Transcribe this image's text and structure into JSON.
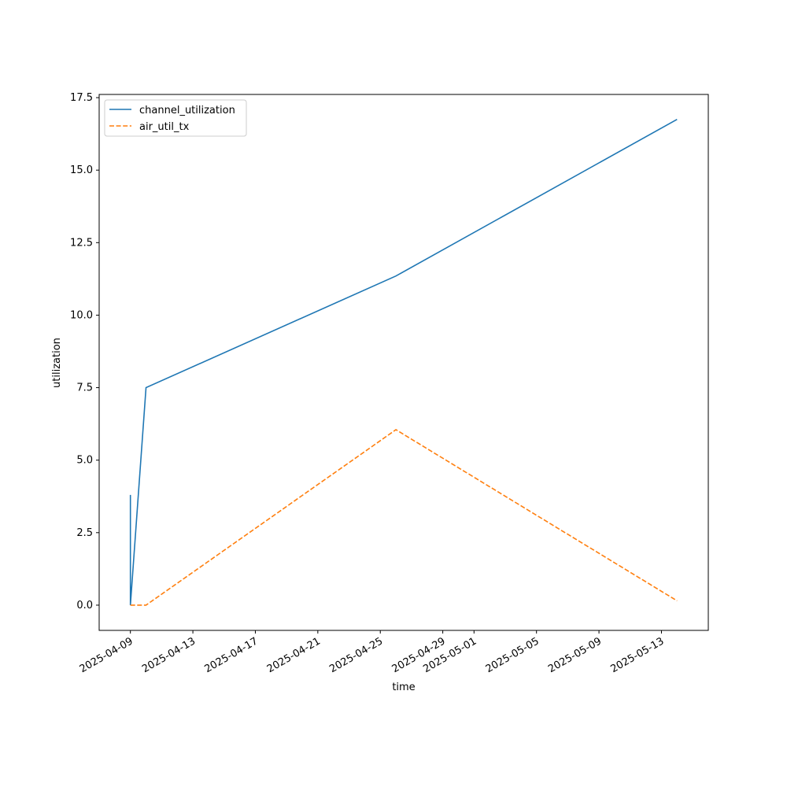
{
  "chart_data": {
    "type": "line",
    "xlabel": "time",
    "ylabel": "utilization",
    "x": [
      "2025-04-09",
      "2025-04-09",
      "2025-04-09",
      "2025-04-10",
      "2025-04-26",
      "2025-05-14"
    ],
    "series": [
      {
        "name": "channel_utilization",
        "color": "#1f77b4",
        "linestyle": "solid",
        "values": [
          0.7,
          3.8,
          0.0,
          7.5,
          11.35,
          16.75
        ]
      },
      {
        "name": "air_util_tx",
        "color": "#ff7f0e",
        "linestyle": "dashed",
        "values": [
          0.0,
          0.0,
          0.0,
          0.0,
          6.05,
          0.15
        ]
      }
    ],
    "xlim": [
      "2025-04-07",
      "2025-05-16"
    ],
    "xticks": [
      "2025-04-09",
      "2025-04-13",
      "2025-04-17",
      "2025-04-21",
      "2025-04-25",
      "2025-04-29",
      "2025-05-01",
      "2025-05-05",
      "2025-05-09",
      "2025-05-13"
    ],
    "ylim": [
      -0.87,
      17.61
    ],
    "yticks": [
      {
        "value": 0,
        "label": "0.0"
      },
      {
        "value": 2.5,
        "label": "2.5"
      },
      {
        "value": 5,
        "label": "5.0"
      },
      {
        "value": 7.5,
        "label": "7.5"
      },
      {
        "value": 10,
        "label": "10.0"
      },
      {
        "value": 12.5,
        "label": "12.5"
      },
      {
        "value": 15,
        "label": "15.0"
      },
      {
        "value": 17.5,
        "label": "17.5"
      }
    ],
    "legend": "upper left"
  }
}
